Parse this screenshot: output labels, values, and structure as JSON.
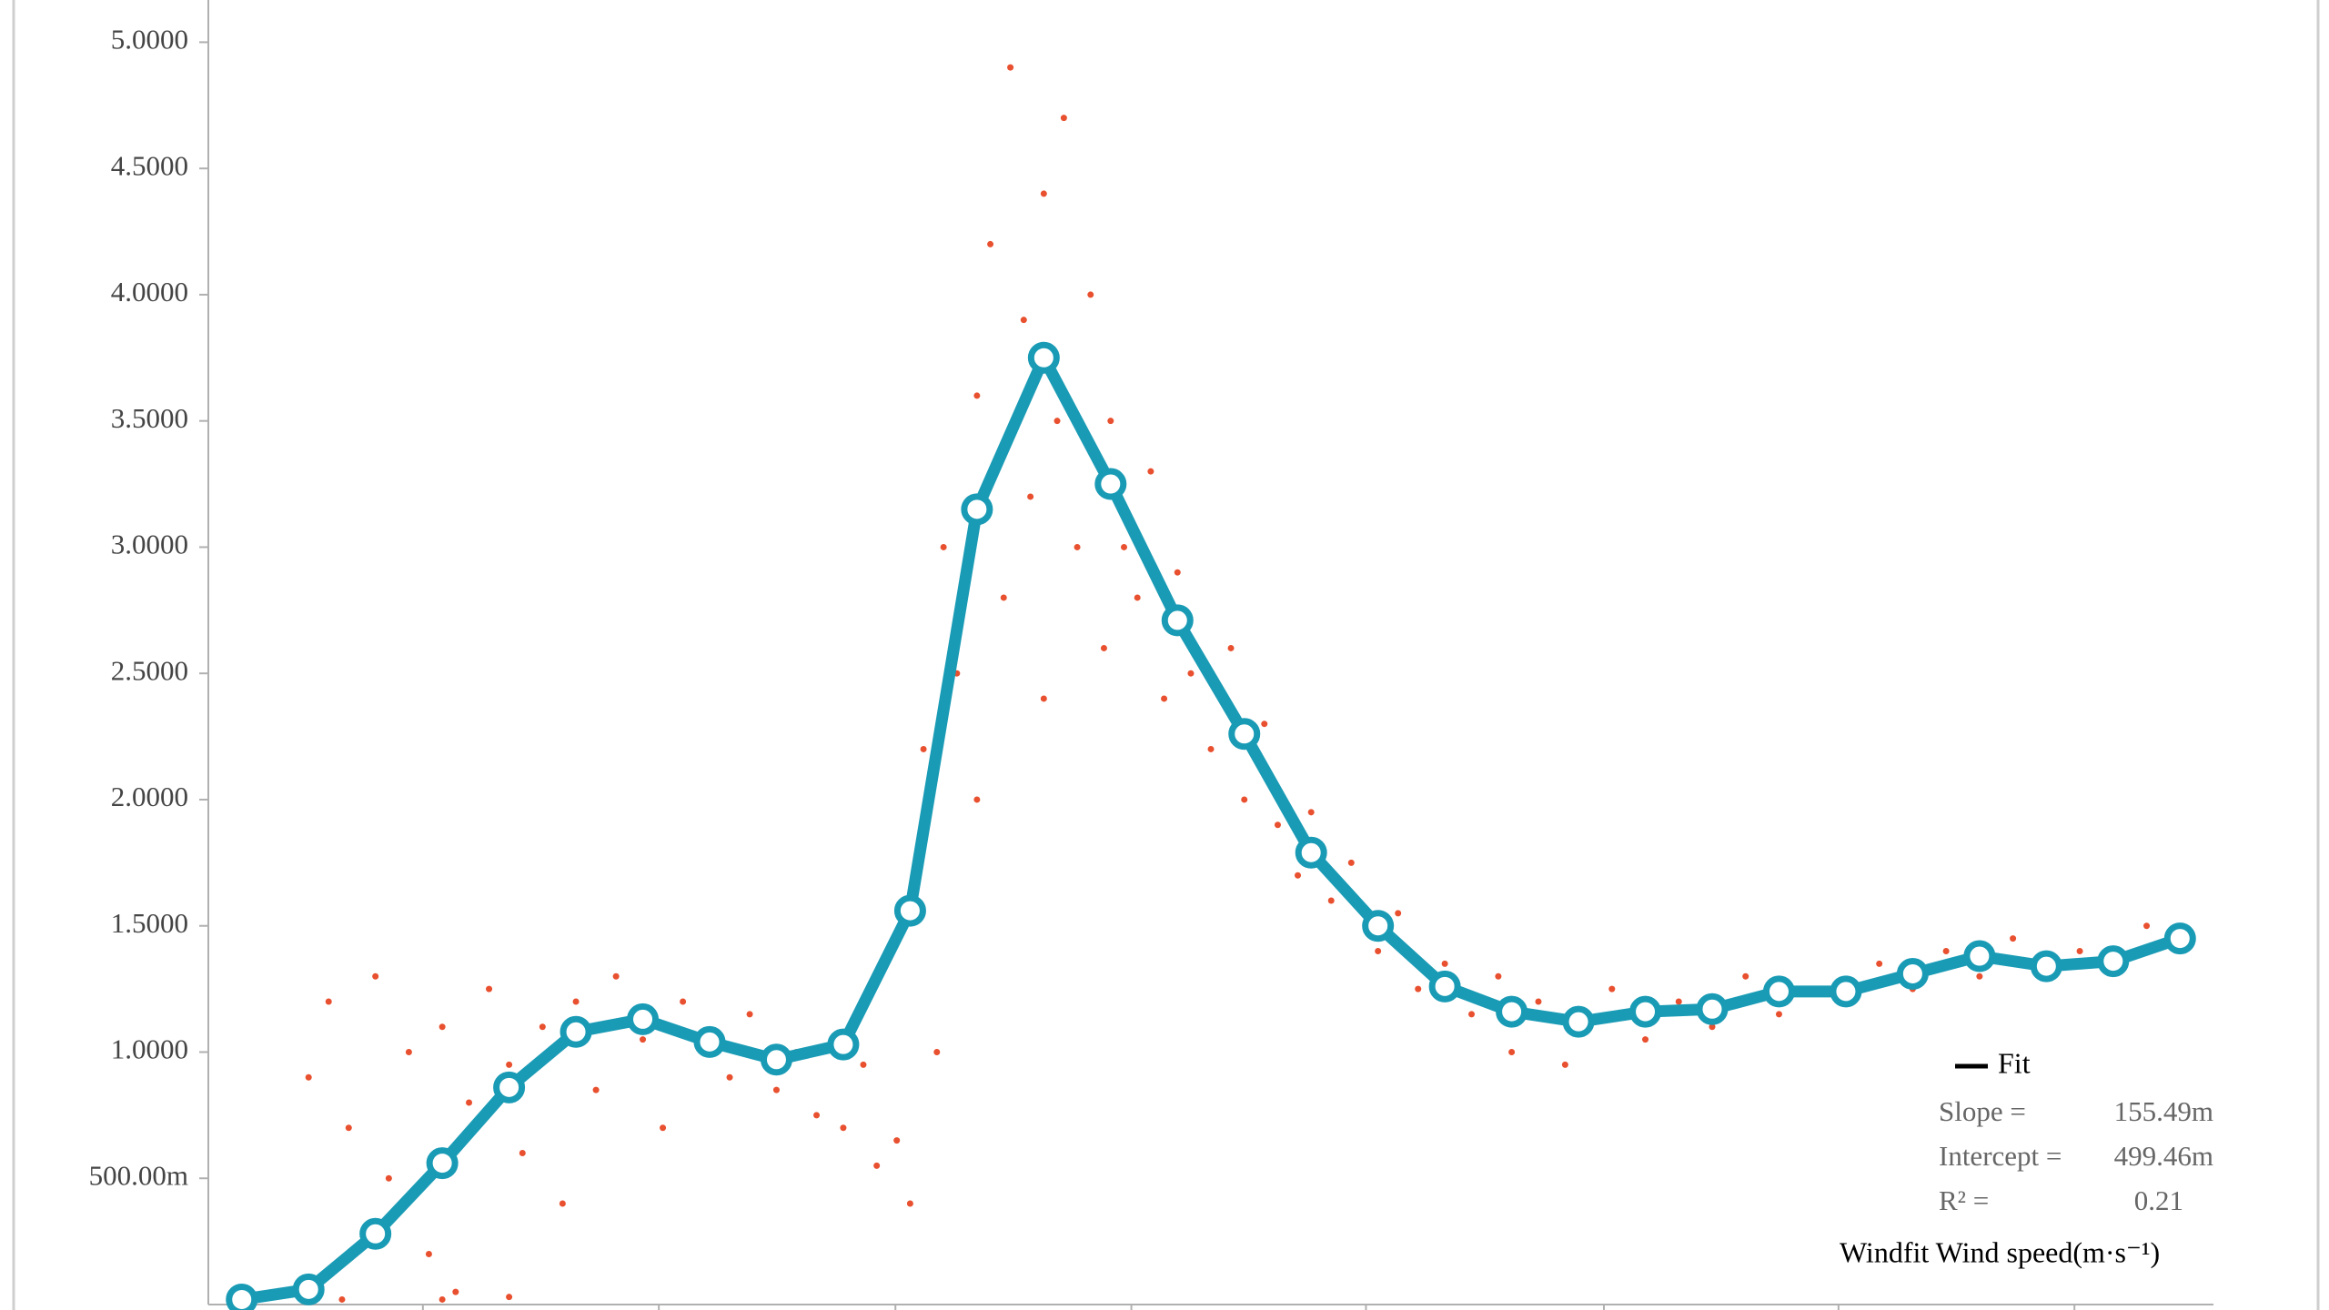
{
  "chart_data": {
    "type": "line-scatter",
    "xlim": [
      -0.5,
      29.5
    ],
    "xticks": [
      2.71,
      6.24,
      9.78,
      13.31,
      16.82,
      20.38,
      23.89,
      27.42
    ],
    "ylim": [
      0,
      5.16
    ],
    "yticks": [
      {
        "value": 0.5,
        "label": "500.00m"
      },
      {
        "value": 1,
        "label": "1.0000"
      },
      {
        "value": 1.5,
        "label": "1.5000"
      },
      {
        "value": 2,
        "label": "2.0000"
      },
      {
        "value": 2.5,
        "label": "2.5000"
      },
      {
        "value": 3,
        "label": "3.0000"
      },
      {
        "value": 3.5,
        "label": "3.5000"
      },
      {
        "value": 4,
        "label": "4.0000"
      },
      {
        "value": 4.5,
        "label": "4.5000"
      },
      {
        "value": 5,
        "label": "5.0000"
      }
    ],
    "grid": false,
    "series": [
      {
        "type": "scatter",
        "color": "#e8502f",
        "x": [
          1,
          1.3,
          1.6,
          2,
          2.2,
          2.5,
          2.8,
          3,
          3.2,
          3.4,
          3.7,
          4,
          4.2,
          4.5,
          4.8,
          5,
          5.3,
          5.6,
          6,
          6.3,
          6.6,
          7,
          7.3,
          7.6,
          8,
          8.3,
          8.6,
          9,
          9.3,
          9.5,
          9.8,
          10,
          10,
          10.2,
          10.4,
          10.5,
          10.7,
          11,
          11,
          11.2,
          11.4,
          11.5,
          11.7,
          11.8,
          12,
          12,
          12.2,
          12.3,
          12.5,
          12.7,
          12.9,
          13,
          13.2,
          13.4,
          13.6,
          13.8,
          14,
          14.2,
          14.5,
          14.8,
          15,
          15.3,
          15.5,
          15.8,
          16,
          16.3,
          16.6,
          17,
          17.3,
          17.6,
          18,
          18.4,
          18.8,
          19,
          19.4,
          19.8,
          20,
          20.5,
          21,
          21.5,
          22,
          22.5,
          23,
          23.5,
          24,
          24.5,
          25,
          25.5,
          26,
          26.5,
          27,
          27.5,
          28,
          28.5,
          29,
          1.5,
          3,
          4
        ],
        "values": [
          0.9,
          1.2,
          0.7,
          1.3,
          0.5,
          1.0,
          0.2,
          1.1,
          0.05,
          0.8,
          1.25,
          0.95,
          0.6,
          1.1,
          0.4,
          1.2,
          0.85,
          1.3,
          1.05,
          0.7,
          1.2,
          1.0,
          0.9,
          1.15,
          0.85,
          1.0,
          0.75,
          0.7,
          0.95,
          0.55,
          0.65,
          1.6,
          0.4,
          2.2,
          1.0,
          3.0,
          2.5,
          3.6,
          2.0,
          4.2,
          2.8,
          4.9,
          3.9,
          3.2,
          4.4,
          2.4,
          3.5,
          4.7,
          3.0,
          4.0,
          2.6,
          3.5,
          3.0,
          2.8,
          3.3,
          2.4,
          2.9,
          2.5,
          2.2,
          2.6,
          2.0,
          2.3,
          1.9,
          1.7,
          1.95,
          1.6,
          1.75,
          1.4,
          1.55,
          1.25,
          1.35,
          1.15,
          1.3,
          1.0,
          1.2,
          0.95,
          1.1,
          1.25,
          1.05,
          1.2,
          1.1,
          1.3,
          1.15,
          1.25,
          1.2,
          1.35,
          1.25,
          1.4,
          1.3,
          1.45,
          1.3,
          1.4,
          1.35,
          1.5,
          1.4,
          0.02,
          0.02,
          0.03
        ]
      },
      {
        "type": "line",
        "name": "Fit",
        "color": "#1a9bb5",
        "x": [
          0,
          1,
          2,
          3,
          4,
          5,
          6,
          7,
          8,
          9,
          10,
          11,
          12,
          13,
          14,
          15,
          16,
          17,
          18,
          19,
          20,
          21,
          22,
          23,
          24,
          25,
          26,
          27,
          28,
          29
        ],
        "values": [
          0.02,
          0.06,
          0.28,
          0.56,
          0.86,
          1.08,
          1.13,
          1.04,
          0.97,
          1.03,
          1.56,
          3.15,
          3.75,
          3.25,
          2.71,
          2.26,
          1.79,
          1.5,
          1.26,
          1.16,
          1.12,
          1.16,
          1.17,
          1.24,
          1.24,
          1.31,
          1.38,
          1.34,
          1.36,
          1.45
        ]
      }
    ],
    "stats": [
      {
        "label": "Slope =",
        "value": "155.49m"
      },
      {
        "label": "Intercept =",
        "value": "499.46m"
      },
      {
        "label": "R² =",
        "value": "0.21"
      }
    ],
    "caption": "Windfit Wind speed(m·s⁻¹)"
  }
}
